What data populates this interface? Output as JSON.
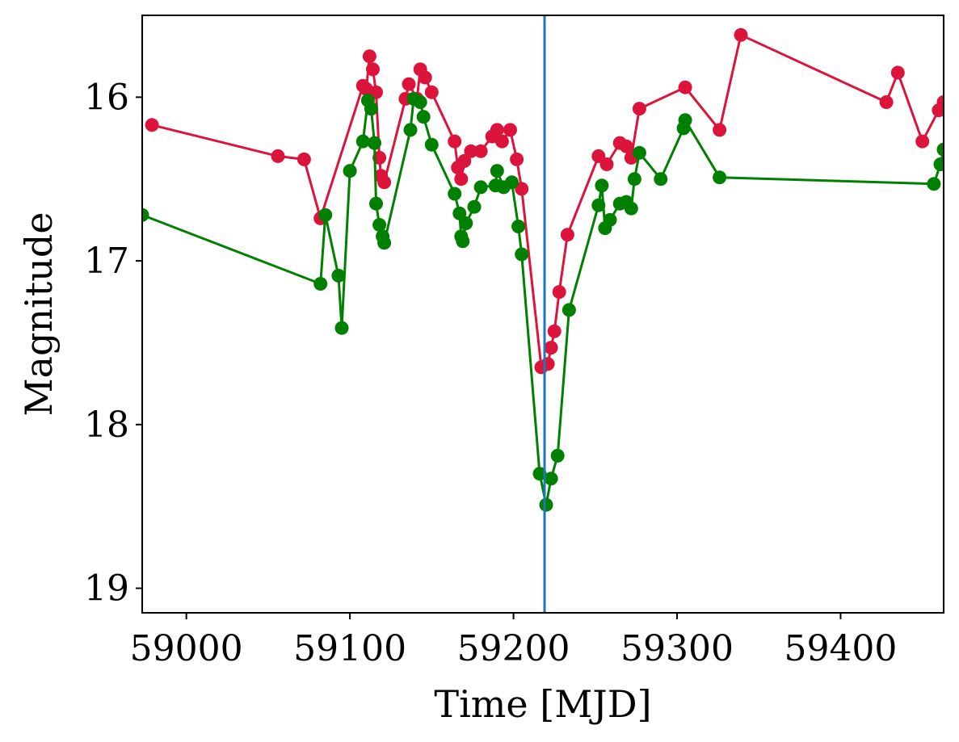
{
  "chart_data": {
    "type": "line",
    "title": "",
    "xlabel": "Time [MJD]",
    "ylabel": "Magnitude",
    "xlim": [
      58973,
      59463
    ],
    "ylim": [
      19.15,
      15.5
    ],
    "y_inverted": true,
    "x_ticks": [
      59000,
      59100,
      59200,
      59300,
      59400
    ],
    "x_tick_labels": [
      "59000",
      "59100",
      "59200",
      "59300",
      "59400"
    ],
    "y_ticks": [
      16,
      17,
      18,
      19
    ],
    "y_tick_labels": [
      "16",
      "17",
      "18",
      "19"
    ],
    "grid": false,
    "legend": "none",
    "vertical_line": {
      "x": 59219,
      "color": "#1f77b4"
    },
    "series": [
      {
        "color": "#dc143c",
        "points": [
          [
            58979,
            16.17
          ],
          [
            59056,
            16.36
          ],
          [
            59072,
            16.38
          ],
          [
            59082,
            16.74
          ],
          [
            59108,
            15.93
          ],
          [
            59110,
            15.95
          ],
          [
            59112,
            15.75
          ],
          [
            59114,
            15.83
          ],
          [
            59116,
            15.97
          ],
          [
            59118,
            16.37
          ],
          [
            59119,
            16.48
          ],
          [
            59121,
            16.52
          ],
          [
            59134,
            16.01
          ],
          [
            59136,
            15.92
          ],
          [
            59141,
            16.01
          ],
          [
            59143,
            15.83
          ],
          [
            59146,
            15.88
          ],
          [
            59150,
            15.97
          ],
          [
            59164,
            16.27
          ],
          [
            59166,
            16.43
          ],
          [
            59168,
            16.5
          ],
          [
            59170,
            16.39
          ],
          [
            59174,
            16.33
          ],
          [
            59180,
            16.33
          ],
          [
            59187,
            16.24
          ],
          [
            59190,
            16.2
          ],
          [
            59193,
            16.27
          ],
          [
            59198,
            16.2
          ],
          [
            59202,
            16.38
          ],
          [
            59205,
            16.56
          ],
          [
            59217,
            17.65
          ],
          [
            59221,
            17.63
          ],
          [
            59223,
            17.53
          ],
          [
            59225,
            17.43
          ],
          [
            59228,
            17.19
          ],
          [
            59233,
            16.84
          ],
          [
            59252,
            16.36
          ],
          [
            59257,
            16.41
          ],
          [
            59265,
            16.28
          ],
          [
            59269,
            16.3
          ],
          [
            59272,
            16.37
          ],
          [
            59277,
            16.07
          ],
          [
            59305,
            15.94
          ],
          [
            59326,
            16.2
          ],
          [
            59339,
            15.62
          ],
          [
            59428,
            16.03
          ],
          [
            59435,
            15.85
          ],
          [
            59450,
            16.27
          ],
          [
            59460,
            16.08
          ],
          [
            59463,
            16.03
          ]
        ]
      },
      {
        "color": "#008000",
        "points": [
          [
            58973,
            16.72
          ],
          [
            59082,
            17.14
          ],
          [
            59085,
            16.72
          ],
          [
            59093,
            17.09
          ],
          [
            59095,
            17.41
          ],
          [
            59100,
            16.45
          ],
          [
            59108,
            16.27
          ],
          [
            59111,
            16.02
          ],
          [
            59113,
            16.07
          ],
          [
            59115,
            16.28
          ],
          [
            59116,
            16.65
          ],
          [
            59118,
            16.78
          ],
          [
            59120,
            16.85
          ],
          [
            59121,
            16.89
          ],
          [
            59137,
            16.2
          ],
          [
            59139,
            16.01
          ],
          [
            59143,
            16.03
          ],
          [
            59145,
            16.12
          ],
          [
            59150,
            16.29
          ],
          [
            59164,
            16.59
          ],
          [
            59167,
            16.71
          ],
          [
            59168,
            16.85
          ],
          [
            59169,
            16.88
          ],
          [
            59171,
            16.77
          ],
          [
            59176,
            16.67
          ],
          [
            59180,
            16.55
          ],
          [
            59189,
            16.54
          ],
          [
            59190,
            16.45
          ],
          [
            59194,
            16.55
          ],
          [
            59199,
            16.52
          ],
          [
            59203,
            16.79
          ],
          [
            59205,
            16.96
          ],
          [
            59216,
            18.3
          ],
          [
            59220,
            18.49
          ],
          [
            59223,
            18.33
          ],
          [
            59227,
            18.19
          ],
          [
            59234,
            17.3
          ],
          [
            59252,
            16.66
          ],
          [
            59254,
            16.54
          ],
          [
            59256,
            16.8
          ],
          [
            59259,
            16.75
          ],
          [
            59265,
            16.65
          ],
          [
            59269,
            16.64
          ],
          [
            59272,
            16.68
          ],
          [
            59274,
            16.5
          ],
          [
            59277,
            16.34
          ],
          [
            59290,
            16.5
          ],
          [
            59304,
            16.19
          ],
          [
            59305,
            16.14
          ],
          [
            59326,
            16.49
          ],
          [
            59457,
            16.53
          ],
          [
            59461,
            16.41
          ],
          [
            59463,
            16.32
          ]
        ]
      }
    ]
  }
}
